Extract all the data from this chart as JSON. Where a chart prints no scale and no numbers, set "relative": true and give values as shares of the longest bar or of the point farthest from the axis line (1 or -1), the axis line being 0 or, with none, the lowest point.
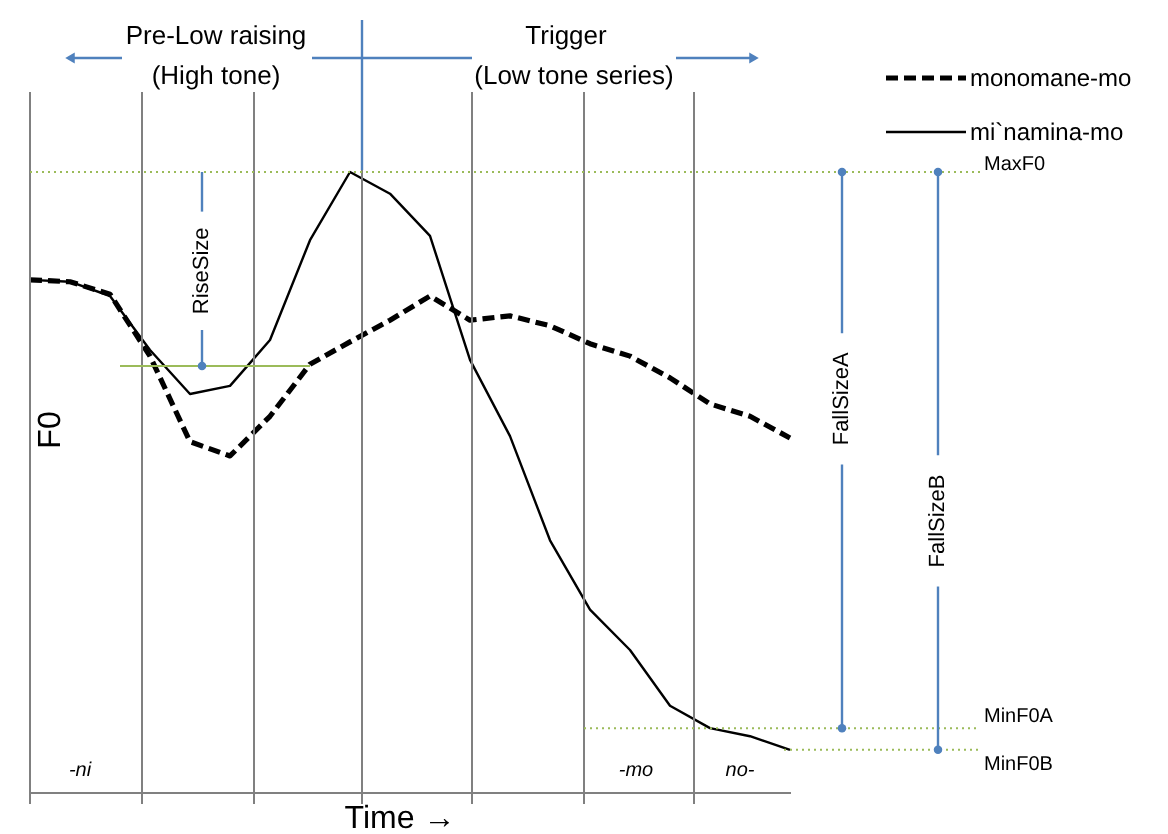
{
  "chart_data": {
    "type": "line",
    "relative": true,
    "xlabel": "Time →",
    "ylabel": "F0",
    "categories": [
      null,
      null,
      null,
      null,
      null,
      null,
      null,
      null,
      null,
      null,
      null,
      null,
      null,
      null,
      null,
      null,
      null,
      null,
      null,
      null
    ],
    "legend": "top right",
    "series": [
      {
        "name": "monomane-mo",
        "color": "#000000",
        "line_style": "dashed",
        "values": [
          0.826,
          0.823,
          0.803,
          0.703,
          0.565,
          0.542,
          0.606,
          0.69,
          0.726,
          0.761,
          0.8,
          0.761,
          0.768,
          0.752,
          0.723,
          0.703,
          0.668,
          0.626,
          0.606,
          0.571
        ]
      },
      {
        "name": "mi`namina-mo",
        "color": "#000000",
        "line_style": "solid",
        "values": [
          0.826,
          0.823,
          0.8,
          0.713,
          0.642,
          0.655,
          0.729,
          0.89,
          1.0,
          0.965,
          0.897,
          0.697,
          0.574,
          0.406,
          0.294,
          0.229,
          0.139,
          0.103,
          0.09,
          0.068
        ]
      }
    ],
    "ref_lines": [
      {
        "axis": "y",
        "value": 1.0,
        "label": "MaxF0",
        "color": "#9bbb59",
        "line_style": "dotted"
      },
      {
        "axis": "y",
        "value": 0.103,
        "label": "MinF0A",
        "color": "#9bbb59",
        "line_style": "dotted"
      },
      {
        "axis": "y",
        "value": 0.068,
        "label": "MinF0B",
        "color": "#9bbb59",
        "line_style": "dotted"
      },
      {
        "axis": "y",
        "value": 0.687,
        "label": null,
        "color": "#9bbb59",
        "line_style": "solid"
      }
    ],
    "annotations": [
      "Pre-Low raising",
      "(High tone)",
      "Trigger",
      "(Low tone series)",
      "RiseSize",
      "FallSizeA",
      "FallSizeB",
      "-ni",
      "-mo",
      "no-"
    ]
  }
}
